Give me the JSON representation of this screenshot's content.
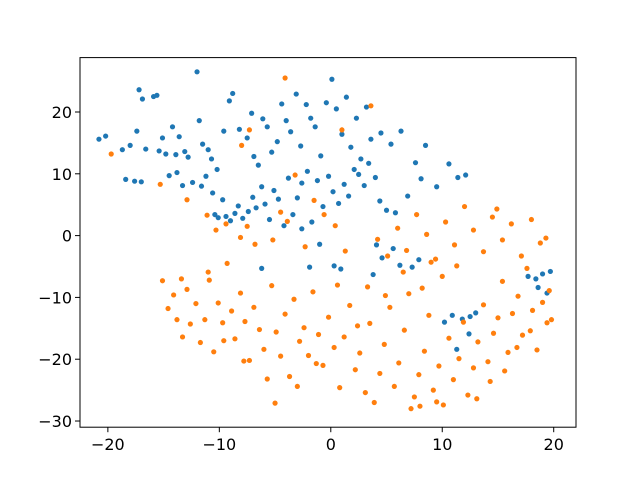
{
  "chart_data": {
    "type": "scatter",
    "title": "",
    "xlabel": "",
    "ylabel": "",
    "xlim": [
      -22.5,
      22.0
    ],
    "ylim": [
      -31.0,
      28.8
    ],
    "x_ticks": [
      -20,
      -10,
      0,
      10,
      20
    ],
    "y_ticks": [
      -30,
      -20,
      -10,
      0,
      10,
      20
    ],
    "x_tick_labels": [
      "−20",
      "−10",
      "0",
      "10",
      "20"
    ],
    "y_tick_labels": [
      "−30",
      "−20",
      "−10",
      "0",
      "10",
      "20"
    ],
    "grid": false,
    "legend": "none",
    "series": [
      {
        "color": "#1f77b4",
        "points": [
          [
            -20.8,
            15.6
          ],
          [
            -20.2,
            16.1
          ],
          [
            -18.7,
            13.9
          ],
          [
            -18.0,
            14.6
          ],
          [
            -17.4,
            16.9
          ],
          [
            -17.2,
            23.6
          ],
          [
            -16.9,
            22.1
          ],
          [
            -16.6,
            14.0
          ],
          [
            -15.9,
            22.5
          ],
          [
            -15.6,
            22.7
          ],
          [
            -15.4,
            13.7
          ],
          [
            -15.1,
            15.8
          ],
          [
            -14.8,
            13.2
          ],
          [
            -14.2,
            17.6
          ],
          [
            -13.9,
            13.1
          ],
          [
            -13.6,
            16.0
          ],
          [
            -13.1,
            13.6
          ],
          [
            -12.8,
            12.7
          ],
          [
            -12.0,
            26.5
          ],
          [
            -11.8,
            18.6
          ],
          [
            -11.5,
            14.8
          ],
          [
            -11.0,
            13.9
          ],
          [
            -10.7,
            12.4
          ],
          [
            -10.2,
            10.7
          ],
          [
            -9.6,
            16.9
          ],
          [
            -9.1,
            21.8
          ],
          [
            -8.8,
            23.0
          ],
          [
            -8.2,
            17.2
          ],
          [
            -7.5,
            15.8
          ],
          [
            -7.1,
            19.8
          ],
          [
            -6.9,
            12.8
          ],
          [
            -6.5,
            11.4
          ],
          [
            -6.1,
            18.9
          ],
          [
            -5.7,
            17.6
          ],
          [
            -5.3,
            13.5
          ],
          [
            -4.8,
            15.2
          ],
          [
            -4.4,
            21.3
          ],
          [
            -4.0,
            18.6
          ],
          [
            -3.6,
            16.8
          ],
          [
            -3.1,
            22.9
          ],
          [
            -2.7,
            14.5
          ],
          [
            -2.2,
            21.2
          ],
          [
            -1.8,
            19.0
          ],
          [
            -1.4,
            17.6
          ],
          [
            -0.9,
            12.9
          ],
          [
            -0.4,
            21.5
          ],
          [
            0.1,
            25.3
          ],
          [
            0.5,
            20.5
          ],
          [
            1.0,
            16.4
          ],
          [
            1.4,
            22.4
          ],
          [
            1.8,
            14.3
          ],
          [
            2.3,
            19.0
          ],
          [
            2.7,
            12.4
          ],
          [
            3.2,
            20.8
          ],
          [
            3.6,
            15.6
          ],
          [
            4.5,
            16.6
          ],
          [
            5.4,
            14.8
          ],
          [
            6.3,
            16.9
          ],
          [
            7.6,
            11.8
          ],
          [
            8.5,
            14.6
          ],
          [
            -18.4,
            9.1
          ],
          [
            -17.6,
            8.8
          ],
          [
            -17.0,
            8.7
          ],
          [
            -14.5,
            9.7
          ],
          [
            -13.8,
            10.2
          ],
          [
            -13.3,
            8.1
          ],
          [
            -12.4,
            8.6
          ],
          [
            -11.6,
            8.0
          ],
          [
            -11.2,
            9.6
          ],
          [
            -10.6,
            6.9
          ],
          [
            -10.4,
            3.4
          ],
          [
            -10.1,
            2.9
          ],
          [
            -9.7,
            5.8
          ],
          [
            -9.4,
            3.1
          ],
          [
            -9.0,
            2.4
          ],
          [
            -8.6,
            3.6
          ],
          [
            -8.3,
            4.8
          ],
          [
            -7.9,
            2.8
          ],
          [
            -7.4,
            3.9
          ],
          [
            -7.0,
            6.2
          ],
          [
            -6.7,
            4.5
          ],
          [
            -6.2,
            7.9
          ],
          [
            -5.9,
            5.1
          ],
          [
            -5.5,
            2.6
          ],
          [
            -5.1,
            7.3
          ],
          [
            -4.7,
            5.9
          ],
          [
            -4.2,
            1.6
          ],
          [
            -3.8,
            9.3
          ],
          [
            -3.4,
            3.4
          ],
          [
            -3.0,
            6.1
          ],
          [
            -2.6,
            8.5
          ],
          [
            -2.1,
            10.4
          ],
          [
            -1.7,
            2.2
          ],
          [
            -1.2,
            8.9
          ],
          [
            -0.7,
            4.7
          ],
          [
            -0.2,
            9.6
          ],
          [
            0.2,
            7.1
          ],
          [
            0.7,
            5.2
          ],
          [
            1.2,
            8.3
          ],
          [
            1.6,
            6.4
          ],
          [
            2.1,
            10.7
          ],
          [
            2.5,
            9.9
          ],
          [
            3.0,
            8.1
          ],
          [
            3.4,
            11.7
          ],
          [
            4.0,
            9.4
          ],
          [
            4.4,
            5.6
          ],
          [
            5.0,
            4.1
          ],
          [
            5.8,
            3.7
          ],
          [
            6.9,
            6.4
          ],
          [
            8.1,
            9.2
          ],
          [
            9.5,
            7.9
          ],
          [
            10.6,
            11.6
          ],
          [
            11.4,
            9.4
          ],
          [
            12.1,
            9.8
          ],
          [
            -2.6,
            1.1
          ],
          [
            -1.9,
            -5.1
          ],
          [
            -1.0,
            -1.4
          ],
          [
            0.3,
            -4.9
          ],
          [
            0.9,
            -5.4
          ],
          [
            -6.2,
            -5.3
          ],
          [
            10.2,
            -14.0
          ],
          [
            11.8,
            -13.5
          ],
          [
            12.5,
            -13.1
          ],
          [
            10.9,
            -12.9
          ],
          [
            11.3,
            -18.4
          ],
          [
            12.4,
            -15.9
          ],
          [
            13.0,
            -12.5
          ],
          [
            17.7,
            -6.6
          ],
          [
            18.4,
            -7.0
          ],
          [
            19.0,
            -6.2
          ],
          [
            19.7,
            -5.8
          ],
          [
            19.4,
            -9.3
          ],
          [
            18.6,
            -8.4
          ],
          [
            4.6,
            -3.6
          ],
          [
            3.8,
            -6.3
          ],
          [
            4.1,
            -1.5
          ],
          [
            5.6,
            -2.1
          ],
          [
            6.2,
            -4.8
          ],
          [
            7.3,
            -5.1
          ],
          [
            7.9,
            -3.9
          ]
        ]
      },
      {
        "color": "#ff7f0e",
        "points": [
          [
            -19.7,
            13.2
          ],
          [
            -15.3,
            8.3
          ],
          [
            -12.9,
            5.8
          ],
          [
            -11.1,
            3.3
          ],
          [
            -10.3,
            0.9
          ],
          [
            -9.4,
            1.9
          ],
          [
            -8.1,
            -0.3
          ],
          [
            -7.5,
            1.5
          ],
          [
            -6.8,
            -1.4
          ],
          [
            -5.2,
            -0.7
          ],
          [
            -4.5,
            3.8
          ],
          [
            -3.9,
            2.3
          ],
          [
            -3.2,
            9.8
          ],
          [
            -2.3,
            -1.8
          ],
          [
            -1.5,
            5.7
          ],
          [
            -0.6,
            3.4
          ],
          [
            0.4,
            1.6
          ],
          [
            1.3,
            -2.5
          ],
          [
            -4.1,
            25.5
          ],
          [
            1.0,
            17.1
          ],
          [
            3.6,
            21.0
          ],
          [
            -7.3,
            17.1
          ],
          [
            -8.0,
            14.6
          ],
          [
            -15.1,
            -7.3
          ],
          [
            -14.6,
            -11.8
          ],
          [
            -14.1,
            -9.6
          ],
          [
            -13.8,
            -13.6
          ],
          [
            -13.3,
            -16.4
          ],
          [
            -12.9,
            -8.7
          ],
          [
            -12.6,
            -14.3
          ],
          [
            -12.1,
            -11.0
          ],
          [
            -11.7,
            -17.3
          ],
          [
            -11.3,
            -13.6
          ],
          [
            -10.9,
            -7.2
          ],
          [
            -10.5,
            -18.8
          ],
          [
            -10.1,
            -10.9
          ],
          [
            -9.7,
            -14.1
          ],
          [
            -9.3,
            -4.5
          ],
          [
            -8.9,
            -12.2
          ],
          [
            -8.6,
            -16.7
          ],
          [
            -8.1,
            -9.3
          ],
          [
            -7.7,
            -13.9
          ],
          [
            -7.3,
            -20.2
          ],
          [
            -6.9,
            -11.6
          ],
          [
            -6.4,
            -15.2
          ],
          [
            -6.0,
            -18.4
          ],
          [
            -5.7,
            -23.2
          ],
          [
            -5.3,
            -8.1
          ],
          [
            -4.9,
            -15.6
          ],
          [
            -4.5,
            -19.5
          ],
          [
            -4.1,
            -12.7
          ],
          [
            -3.7,
            -22.8
          ],
          [
            -3.3,
            -10.3
          ],
          [
            -2.8,
            -17.1
          ],
          [
            -2.4,
            -14.9
          ],
          [
            -2.0,
            -19.4
          ],
          [
            -1.6,
            -9.1
          ],
          [
            -1.1,
            -16.0
          ],
          [
            -0.7,
            -21.0
          ],
          [
            -0.2,
            -13.2
          ],
          [
            0.3,
            -18.1
          ],
          [
            0.8,
            -24.6
          ],
          [
            1.2,
            -16.4
          ],
          [
            1.7,
            -11.3
          ],
          [
            2.2,
            -21.7
          ],
          [
            2.6,
            -19.0
          ],
          [
            3.1,
            -25.4
          ],
          [
            3.5,
            -14.2
          ],
          [
            3.9,
            -27.0
          ],
          [
            4.4,
            -22.3
          ],
          [
            4.8,
            -17.6
          ],
          [
            5.3,
            -11.6
          ],
          [
            5.7,
            -24.4
          ],
          [
            6.1,
            -20.6
          ],
          [
            6.6,
            -15.3
          ],
          [
            7.0,
            -9.4
          ],
          [
            7.5,
            -26.1
          ],
          [
            7.9,
            -22.5
          ],
          [
            8.4,
            -18.7
          ],
          [
            8.8,
            -12.9
          ],
          [
            9.2,
            -25.0
          ],
          [
            9.7,
            -21.1
          ],
          [
            10.1,
            -27.4
          ],
          [
            10.6,
            -16.6
          ],
          [
            11.0,
            -23.3
          ],
          [
            11.5,
            -19.9
          ],
          [
            11.9,
            -14.0
          ],
          [
            12.3,
            -25.8
          ],
          [
            12.8,
            -21.4
          ],
          [
            13.2,
            -17.2
          ],
          [
            13.7,
            -11.2
          ],
          [
            14.1,
            -20.4
          ],
          [
            14.6,
            -15.8
          ],
          [
            15.0,
            -13.3
          ],
          [
            15.4,
            -7.4
          ],
          [
            15.9,
            -18.9
          ],
          [
            16.3,
            -12.6
          ],
          [
            16.8,
            -9.8
          ],
          [
            17.2,
            -16.1
          ],
          [
            17.6,
            -5.3
          ],
          [
            18.1,
            -12.1
          ],
          [
            18.5,
            -18.5
          ],
          [
            19.0,
            -10.8
          ],
          [
            19.4,
            -14.1
          ],
          [
            19.8,
            -13.6
          ],
          [
            4.2,
            -0.6
          ],
          [
            5.1,
            -3.3
          ],
          [
            6.0,
            1.2
          ],
          [
            6.8,
            -2.4
          ],
          [
            7.7,
            3.4
          ],
          [
            8.6,
            0.2
          ],
          [
            9.4,
            -3.8
          ],
          [
            10.3,
            2.2
          ],
          [
            11.1,
            -1.5
          ],
          [
            12.0,
            4.7
          ],
          [
            12.8,
            0.9
          ],
          [
            13.7,
            -2.6
          ],
          [
            14.5,
            3.0
          ],
          [
            15.4,
            -0.7
          ],
          [
            16.2,
            1.9
          ],
          [
            17.1,
            -3.3
          ],
          [
            18.0,
            2.6
          ],
          [
            18.8,
            -1.2
          ],
          [
            19.3,
            -0.4
          ],
          [
            14.9,
            4.3
          ],
          [
            11.3,
            -4.9
          ],
          [
            10.0,
            -6.6
          ],
          [
            8.2,
            -8.5
          ],
          [
            6.5,
            -5.9
          ],
          [
            4.9,
            -9.7
          ],
          [
            3.3,
            -8.3
          ],
          [
            2.4,
            -14.6
          ],
          [
            0.6,
            -8.0
          ],
          [
            -1.3,
            -20.7
          ],
          [
            -3.0,
            -24.4
          ],
          [
            -5.0,
            -27.1
          ],
          [
            -7.8,
            -20.3
          ],
          [
            -9.6,
            -17.0
          ],
          [
            -11.0,
            -5.9
          ],
          [
            -13.4,
            -7.0
          ],
          [
            9.0,
            -4.3
          ],
          [
            7.2,
            -28.0
          ],
          [
            8.0,
            -27.6
          ],
          [
            9.5,
            -26.9
          ],
          [
            13.1,
            -26.4
          ],
          [
            14.3,
            -23.6
          ],
          [
            15.6,
            -21.9
          ],
          [
            16.7,
            -18.1
          ],
          [
            17.9,
            -15.4
          ],
          [
            19.6,
            -8.9
          ]
        ]
      }
    ]
  }
}
